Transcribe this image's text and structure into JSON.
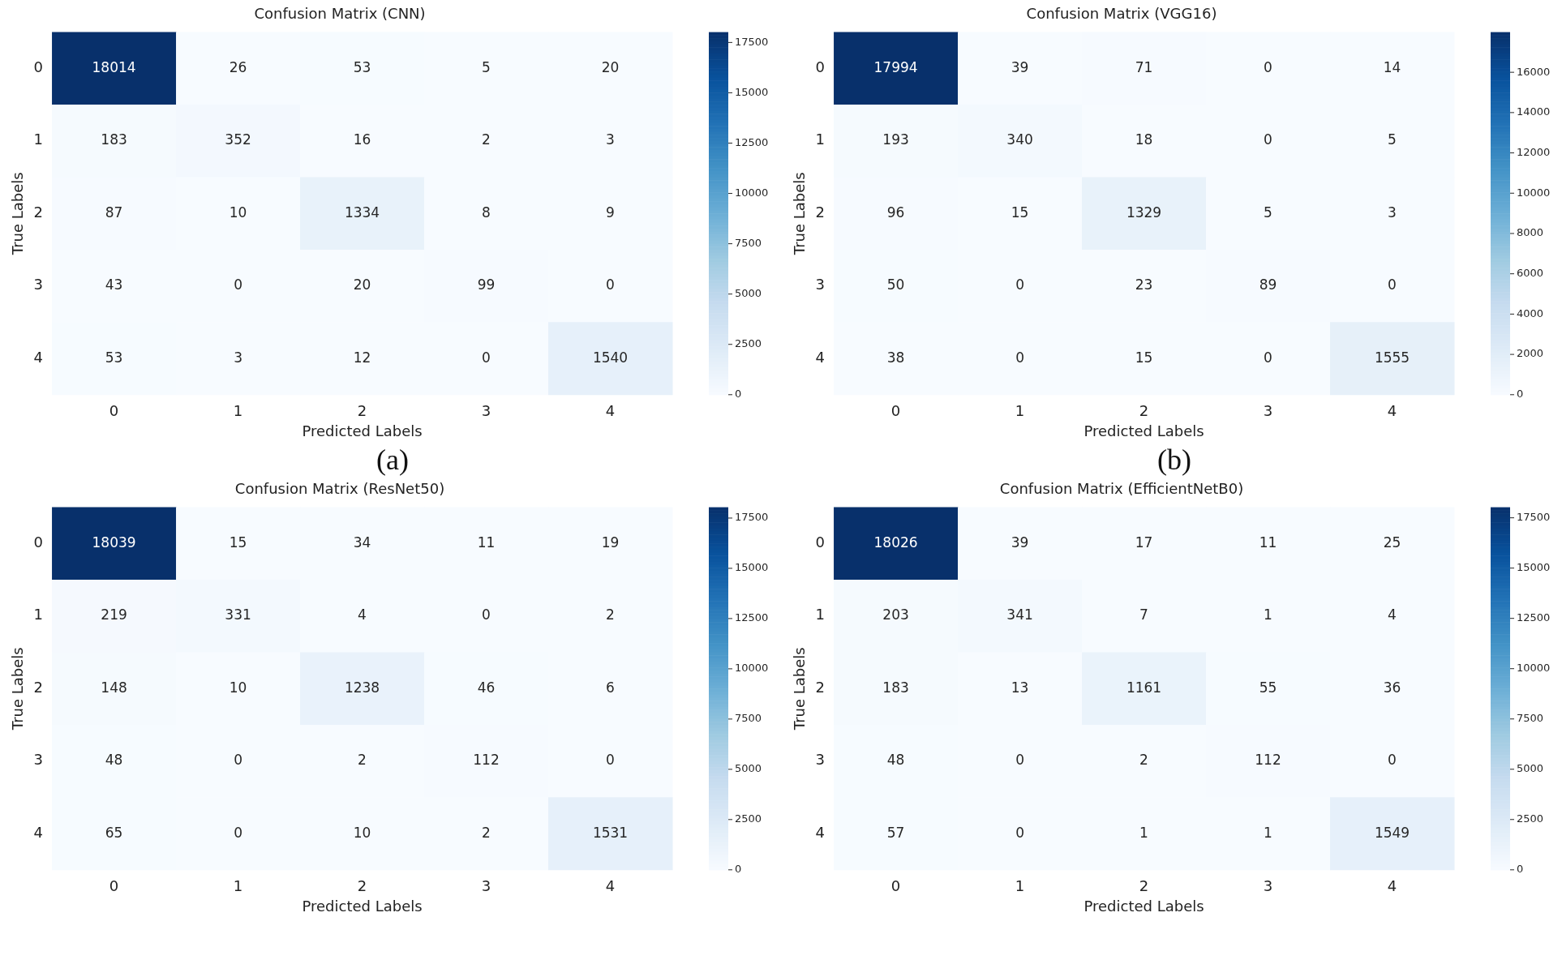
{
  "chart_data": [
    {
      "type": "heatmap",
      "data_labels": true,
      "title": "Confusion Matrix (CNN)",
      "xlabel": "Predicted Labels",
      "ylabel": "True Labels",
      "categories": [
        "0",
        "1",
        "2",
        "3",
        "4"
      ],
      "y_categories": [
        "0",
        "1",
        "2",
        "3",
        "4"
      ],
      "cells": [
        [
          18014,
          26,
          53,
          5,
          20
        ],
        [
          183,
          352,
          16,
          2,
          3
        ],
        [
          87,
          10,
          1334,
          8,
          9
        ],
        [
          43,
          0,
          20,
          99,
          0
        ],
        [
          53,
          3,
          12,
          0,
          1540
        ]
      ],
      "clim": [
        0,
        18014
      ],
      "cticks": [
        0,
        2500,
        5000,
        7500,
        10000,
        12500,
        15000,
        17500
      ],
      "annotations": [
        "(a)"
      ]
    },
    {
      "type": "heatmap",
      "data_labels": true,
      "title": "Confusion Matrix (VGG16)",
      "xlabel": "Predicted Labels",
      "ylabel": "True Labels",
      "categories": [
        "0",
        "1",
        "2",
        "3",
        "4"
      ],
      "y_categories": [
        "0",
        "1",
        "2",
        "3",
        "4"
      ],
      "cells": [
        [
          17994,
          39,
          71,
          0,
          14
        ],
        [
          193,
          340,
          18,
          0,
          5
        ],
        [
          96,
          15,
          1329,
          5,
          3
        ],
        [
          50,
          0,
          23,
          89,
          0
        ],
        [
          38,
          0,
          15,
          0,
          1555
        ]
      ],
      "clim": [
        0,
        17994
      ],
      "cticks": [
        0,
        2000,
        4000,
        6000,
        8000,
        10000,
        12000,
        14000,
        16000
      ],
      "annotations": [
        "(b)"
      ]
    },
    {
      "type": "heatmap",
      "data_labels": true,
      "title": "Confusion Matrix (ResNet50)",
      "xlabel": "Predicted Labels",
      "ylabel": "True Labels",
      "categories": [
        "0",
        "1",
        "2",
        "3",
        "4"
      ],
      "y_categories": [
        "0",
        "1",
        "2",
        "3",
        "4"
      ],
      "cells": [
        [
          18039,
          15,
          34,
          11,
          19
        ],
        [
          219,
          331,
          4,
          0,
          2
        ],
        [
          148,
          10,
          1238,
          46,
          6
        ],
        [
          48,
          0,
          2,
          112,
          0
        ],
        [
          65,
          0,
          10,
          2,
          1531
        ]
      ],
      "clim": [
        0,
        18039
      ],
      "cticks": [
        0,
        2500,
        5000,
        7500,
        10000,
        12500,
        15000,
        17500
      ]
    },
    {
      "type": "heatmap",
      "data_labels": true,
      "title": "Confusion Matrix (EfficientNetB0)",
      "xlabel": "Predicted Labels",
      "ylabel": "True Labels",
      "categories": [
        "0",
        "1",
        "2",
        "3",
        "4"
      ],
      "y_categories": [
        "0",
        "1",
        "2",
        "3",
        "4"
      ],
      "cells": [
        [
          18026,
          39,
          17,
          11,
          25
        ],
        [
          203,
          341,
          7,
          1,
          4
        ],
        [
          183,
          13,
          1161,
          55,
          36
        ],
        [
          48,
          0,
          2,
          112,
          0
        ],
        [
          57,
          0,
          1,
          1,
          1549
        ]
      ],
      "clim": [
        0,
        18026
      ],
      "cticks": [
        0,
        2500,
        5000,
        7500,
        10000,
        12500,
        15000,
        17500
      ]
    }
  ]
}
